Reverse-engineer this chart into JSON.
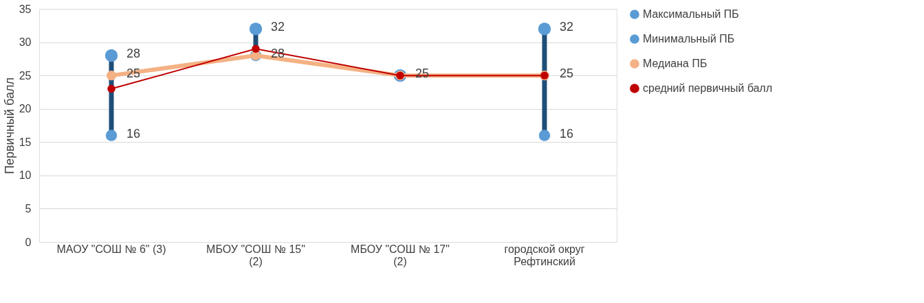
{
  "chart_data": {
    "type": "line",
    "ylabel": "Первичный балл",
    "categories": [
      "МАОУ \"СОШ № 6\" (3)",
      "МБОУ \"СОШ № 15\" (2)",
      "МБОУ \"СОШ № 17\" (2)",
      "городской округ Рефтинский"
    ],
    "ylim": [
      0,
      35
    ],
    "yticks": [
      0,
      5,
      10,
      15,
      20,
      25,
      30,
      35
    ],
    "grid": "y",
    "legend": "right",
    "marker": "circle",
    "series": [
      {
        "name": "Максимальный ПБ",
        "type": "scatter",
        "color": "#5b9bd5",
        "values": [
          28,
          32,
          25,
          32
        ],
        "value_labels": [
          "28",
          "32",
          "25",
          "32"
        ]
      },
      {
        "name": "Минимальный ПБ",
        "type": "scatter",
        "color": "#5b9bd5",
        "values": [
          16,
          28,
          null,
          16
        ],
        "value_labels": [
          "16",
          "28",
          null,
          "16"
        ]
      },
      {
        "name": "Медиана ПБ",
        "color": "#f4b183",
        "values": [
          25,
          28,
          25,
          25
        ],
        "value_labels": [
          "25",
          null,
          null,
          "25"
        ]
      },
      {
        "name": "средний первичный балл",
        "color": "#c00000",
        "values": [
          23,
          29,
          25,
          25
        ]
      }
    ]
  }
}
